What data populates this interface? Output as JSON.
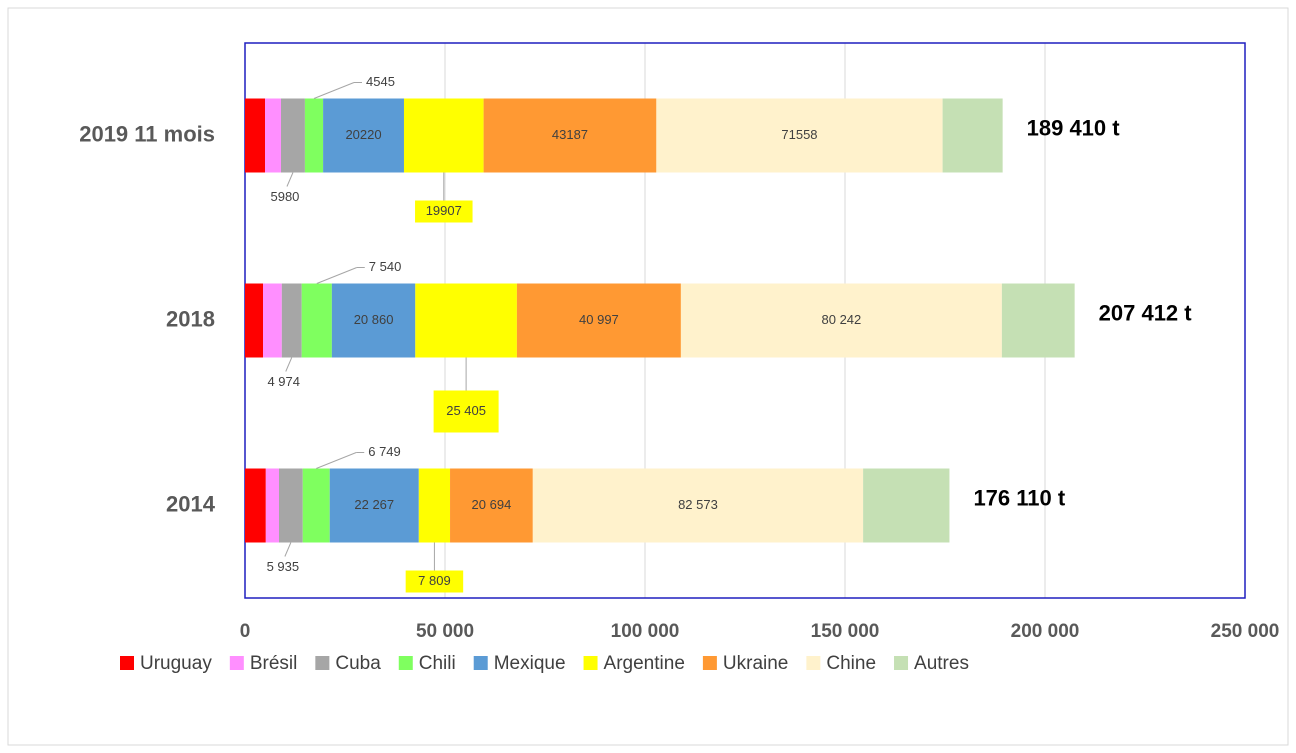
{
  "chart_data": {
    "type": "bar",
    "orientation": "horizontal",
    "stacked": true,
    "categories": [
      "2019 11 mois",
      "2018",
      "2014"
    ],
    "series": [
      {
        "name": "Uruguay",
        "color": "#ff0000",
        "values": [
          5000,
          4500,
          5200
        ]
      },
      {
        "name": "Brésil",
        "color": "#ff8fff",
        "values": [
          4000,
          4700,
          3300
        ]
      },
      {
        "name": "Cuba",
        "color": "#a6a6a6",
        "values": [
          5980,
          4974,
          5935
        ],
        "value_labels": [
          "5980",
          "4 974",
          "5 935"
        ]
      },
      {
        "name": "Chili",
        "color": "#7fff5f",
        "values": [
          4545,
          7540,
          6749
        ],
        "value_labels": [
          "4545",
          "7 540",
          "6 749"
        ]
      },
      {
        "name": "Mexique",
        "color": "#5b9bd5",
        "values": [
          20220,
          20860,
          22267
        ],
        "value_labels": [
          "20220",
          "20 860",
          "22 267"
        ]
      },
      {
        "name": "Argentine",
        "color": "#ffff00",
        "values": [
          19907,
          25405,
          7809
        ],
        "value_labels": [
          "19907",
          "25 405",
          "7 809"
        ]
      },
      {
        "name": "Ukraine",
        "color": "#ff9933",
        "values": [
          43187,
          40997,
          20694
        ],
        "value_labels": [
          "43187",
          "40 997",
          "20 694"
        ]
      },
      {
        "name": "Chine",
        "color": "#fff2cc",
        "values": [
          71558,
          80242,
          82573
        ],
        "value_labels": [
          "71558",
          "80 242",
          "82 573"
        ]
      },
      {
        "name": "Autres",
        "color": "#c5e0b4",
        "values": [
          15013,
          18194,
          21583
        ]
      }
    ],
    "totals": [
      189410,
      207412,
      176110
    ],
    "total_labels": [
      "189 410 t",
      "207 412 t",
      "176 110 t"
    ],
    "xlim": [
      0,
      250000
    ],
    "xticks": [
      0,
      {
        "value": 50000,
        "label": "50 000"
      },
      {
        "value": 100000,
        "label": "100 000"
      },
      {
        "value": 150000,
        "label": "150 000"
      },
      {
        "value": 200000,
        "label": "200 000"
      },
      {
        "value": 250000,
        "label": "250 000"
      }
    ],
    "grid": true,
    "legend": "bottom"
  }
}
